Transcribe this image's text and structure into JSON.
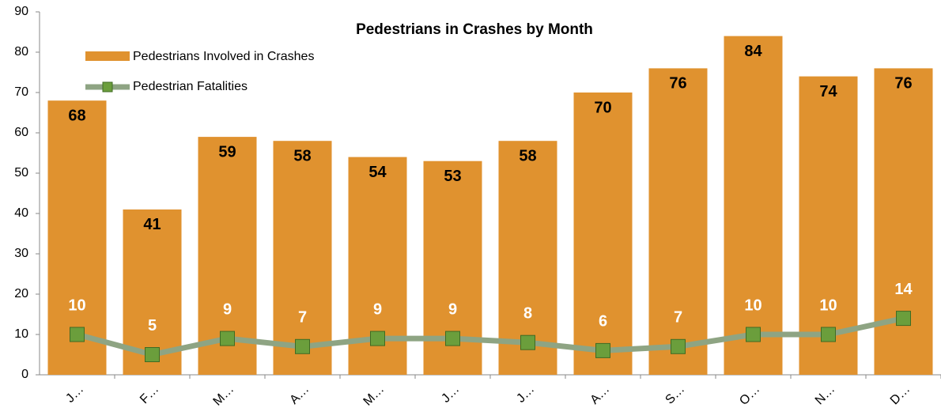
{
  "chart_data": {
    "type": "bar_line",
    "title": "Pedestrians in Crashes by Month",
    "categories": [
      "J…",
      "F…",
      "M…",
      "A…",
      "M…",
      "J…",
      "J…",
      "A…",
      "S…",
      "O…",
      "N…",
      "D…"
    ],
    "series": [
      {
        "name": "Pedestrians Involved in Crashes",
        "type": "bar",
        "color": "#e0922f",
        "values": [
          68,
          41,
          59,
          58,
          54,
          53,
          58,
          70,
          76,
          84,
          74,
          76
        ]
      },
      {
        "name": "Pedestrian Fatalities",
        "type": "line",
        "color": "#8ea483",
        "marker_color": "#6b9e3c",
        "values": [
          10,
          5,
          9,
          7,
          9,
          9,
          8,
          6,
          7,
          10,
          10,
          14
        ]
      }
    ],
    "ylim": [
      0,
      90
    ],
    "yticks": [
      0,
      10,
      20,
      30,
      40,
      50,
      60,
      70,
      80,
      90
    ],
    "grid": false,
    "legend": "upper left"
  }
}
